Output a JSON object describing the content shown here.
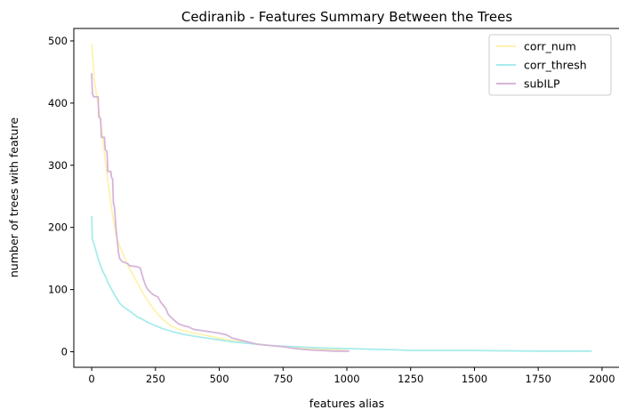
{
  "chart_data": {
    "type": "line",
    "title": "Cediranib - Features Summary Between the Trees",
    "xlabel": "features alias",
    "ylabel": "number of trees with feature",
    "xlim": [
      -70,
      2070
    ],
    "ylim": [
      -25,
      520
    ],
    "xticks": [
      0,
      250,
      500,
      750,
      1000,
      1250,
      1500,
      1750,
      2000
    ],
    "yticks": [
      0,
      100,
      200,
      300,
      400,
      500
    ],
    "grid": false,
    "legend_position": "top-right",
    "series": [
      {
        "name": "corr_num",
        "color": "#fff2b0",
        "points": [
          [
            0,
            495
          ],
          [
            5,
            470
          ],
          [
            10,
            440
          ],
          [
            20,
            410
          ],
          [
            30,
            385
          ],
          [
            40,
            355
          ],
          [
            50,
            320
          ],
          [
            60,
            285
          ],
          [
            70,
            255
          ],
          [
            80,
            225
          ],
          [
            90,
            200
          ],
          [
            100,
            180
          ],
          [
            120,
            160
          ],
          [
            140,
            140
          ],
          [
            160,
            125
          ],
          [
            180,
            110
          ],
          [
            200,
            95
          ],
          [
            220,
            82
          ],
          [
            240,
            70
          ],
          [
            260,
            60
          ],
          [
            280,
            52
          ],
          [
            300,
            45
          ],
          [
            320,
            40
          ],
          [
            350,
            35
          ],
          [
            400,
            30
          ],
          [
            450,
            26
          ],
          [
            500,
            22
          ],
          [
            550,
            18
          ],
          [
            600,
            15
          ],
          [
            650,
            12
          ],
          [
            700,
            10
          ],
          [
            750,
            8
          ],
          [
            800,
            7
          ],
          [
            850,
            5
          ],
          [
            900,
            4
          ],
          [
            950,
            3
          ],
          [
            1000,
            2
          ]
        ]
      },
      {
        "name": "corr_thresh",
        "color": "#a8ecec",
        "points": [
          [
            0,
            218
          ],
          [
            3,
            180
          ],
          [
            8,
            175
          ],
          [
            15,
            165
          ],
          [
            25,
            150
          ],
          [
            35,
            138
          ],
          [
            45,
            128
          ],
          [
            55,
            120
          ],
          [
            65,
            110
          ],
          [
            75,
            103
          ],
          [
            85,
            95
          ],
          [
            95,
            88
          ],
          [
            110,
            78
          ],
          [
            125,
            72
          ],
          [
            140,
            68
          ],
          [
            160,
            62
          ],
          [
            180,
            56
          ],
          [
            200,
            52
          ],
          [
            220,
            47
          ],
          [
            250,
            42
          ],
          [
            280,
            37
          ],
          [
            320,
            32
          ],
          [
            360,
            28
          ],
          [
            400,
            25
          ],
          [
            450,
            22
          ],
          [
            500,
            19
          ],
          [
            550,
            16
          ],
          [
            600,
            14
          ],
          [
            650,
            12
          ],
          [
            700,
            10
          ],
          [
            800,
            8
          ],
          [
            900,
            6
          ],
          [
            1000,
            5
          ],
          [
            1100,
            4
          ],
          [
            1200,
            3
          ],
          [
            1250,
            2
          ],
          [
            1500,
            2
          ],
          [
            1750,
            1
          ],
          [
            1960,
            1
          ]
        ]
      },
      {
        "name": "subILP",
        "color": "#d6b5d8",
        "points": [
          [
            0,
            448
          ],
          [
            3,
            415
          ],
          [
            8,
            410
          ],
          [
            25,
            410
          ],
          [
            28,
            378
          ],
          [
            35,
            375
          ],
          [
            38,
            345
          ],
          [
            50,
            345
          ],
          [
            53,
            325
          ],
          [
            60,
            322
          ],
          [
            63,
            290
          ],
          [
            75,
            290
          ],
          [
            78,
            280
          ],
          [
            82,
            278
          ],
          [
            85,
            240
          ],
          [
            90,
            230
          ],
          [
            95,
            200
          ],
          [
            100,
            180
          ],
          [
            105,
            160
          ],
          [
            110,
            150
          ],
          [
            120,
            145
          ],
          [
            140,
            142
          ],
          [
            150,
            138
          ],
          [
            175,
            137
          ],
          [
            190,
            135
          ],
          [
            200,
            120
          ],
          [
            210,
            108
          ],
          [
            220,
            100
          ],
          [
            240,
            92
          ],
          [
            260,
            88
          ],
          [
            270,
            80
          ],
          [
            280,
            75
          ],
          [
            290,
            70
          ],
          [
            300,
            60
          ],
          [
            320,
            52
          ],
          [
            340,
            45
          ],
          [
            360,
            42
          ],
          [
            380,
            40
          ],
          [
            400,
            36
          ],
          [
            450,
            33
          ],
          [
            500,
            30
          ],
          [
            530,
            27
          ],
          [
            550,
            22
          ],
          [
            600,
            17
          ],
          [
            650,
            12
          ],
          [
            700,
            10
          ],
          [
            750,
            8
          ],
          [
            800,
            5
          ],
          [
            850,
            3
          ],
          [
            900,
            2
          ],
          [
            950,
            1
          ],
          [
            1010,
            1
          ]
        ]
      }
    ]
  }
}
